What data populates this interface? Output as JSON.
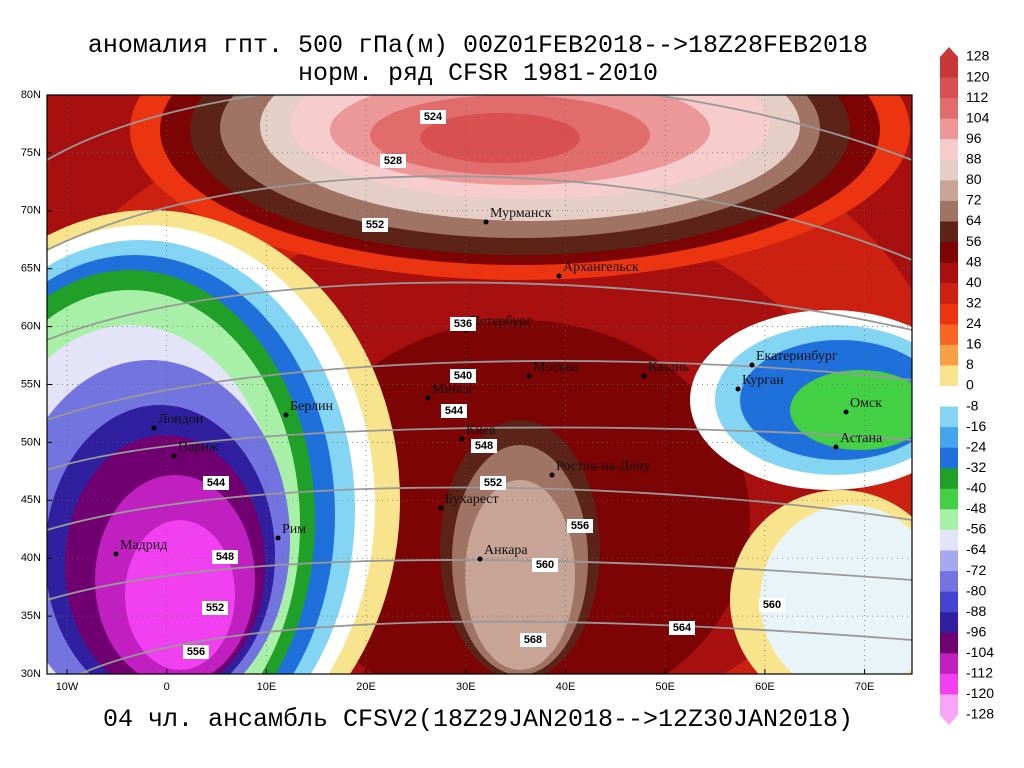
{
  "title": "аномалия гпт. 500 гПа(м) 00Z01FEB2018-->18Z28FEB2018",
  "subtitle": "норм. ряд CFSR 1981-2010",
  "footer": "04 чл. ансамбль CFSV2(18Z29JAN2018-->12Z30JAN2018)",
  "lat_labels": [
    "80N",
    "75N",
    "70N",
    "65N",
    "60N",
    "55N",
    "50N",
    "45N",
    "40N",
    "35N",
    "30N"
  ],
  "lon_labels": [
    "10W",
    "0",
    "10E",
    "20E",
    "30E",
    "40E",
    "50E",
    "60E",
    "70E"
  ],
  "cities": [
    "Мурманск",
    "Архангельск",
    "Петербург",
    "Москва",
    "Казань",
    "Екатеринбург",
    "Курган",
    "Омск",
    "Астана",
    "Минск",
    "Берлин",
    "Лондон",
    "Париж",
    "Киев",
    "Ростов-на-Дону",
    "Бухарест",
    "Рим",
    "Мадрид",
    "Анкара"
  ],
  "contour_labels": [
    "524",
    "528",
    "552",
    "536",
    "540",
    "544",
    "548",
    "552",
    "544",
    "548",
    "552",
    "556",
    "560",
    "560",
    "564",
    "568",
    "556"
  ],
  "colorbar": {
    "labels": [
      "128",
      "120",
      "112",
      "104",
      "96",
      "88",
      "80",
      "72",
      "64",
      "56",
      "48",
      "40",
      "32",
      "24",
      "16",
      "8",
      "0",
      "-8",
      "-16",
      "-24",
      "-32",
      "-40",
      "-48",
      "-56",
      "-64",
      "-72",
      "-80",
      "-88",
      "-96",
      "-104",
      "-112",
      "-120",
      "-128"
    ],
    "colors": [
      "#c83838",
      "#d85050",
      "#e06c6c",
      "#ec9898",
      "#f6cccc",
      "#e4cec6",
      "#c8a496",
      "#a07464",
      "#5c2418",
      "#7c0404",
      "#a81010",
      "#cc2010",
      "#ec3410",
      "#f86422",
      "#f8a044",
      "#f8e48c",
      "#ffffff",
      "#c4f0f8",
      "#84d4f4",
      "#44a4ee",
      "#2070dc",
      "#20a028",
      "#44d044",
      "#a8f0a8",
      "#e4e4f8",
      "#a8a8f0",
      "#7474e0",
      "#4444d0",
      "#3020a0",
      "#700070",
      "#c020c0",
      "#f040f0",
      "#f8a4f8"
    ]
  }
}
